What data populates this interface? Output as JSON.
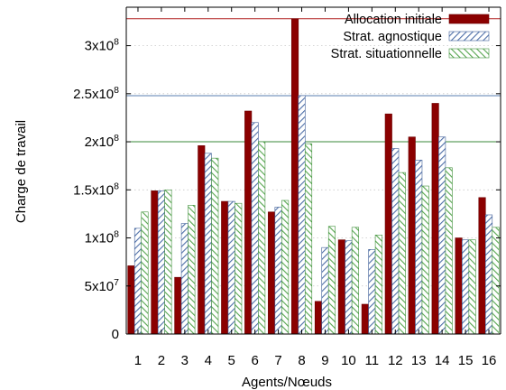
{
  "chart_data": {
    "type": "bar",
    "xlabel": "Agents/Nœuds",
    "ylabel": "Charge de travail",
    "ylim": [
      0,
      340000000
    ],
    "y_ticks": [
      {
        "value": 0,
        "mantissa": "0",
        "exp": ""
      },
      {
        "value": 50000000,
        "mantissa": "5x10",
        "exp": "7"
      },
      {
        "value": 100000000,
        "mantissa": "1x10",
        "exp": "8"
      },
      {
        "value": 150000000,
        "mantissa": "1.5x10",
        "exp": "8"
      },
      {
        "value": 200000000,
        "mantissa": "2x10",
        "exp": "8"
      },
      {
        "value": 250000000,
        "mantissa": "2.5x10",
        "exp": "8"
      },
      {
        "value": 300000000,
        "mantissa": "3x10",
        "exp": "8"
      }
    ],
    "categories": [
      "1",
      "2",
      "3",
      "4",
      "5",
      "6",
      "7",
      "8",
      "9",
      "10",
      "11",
      "12",
      "13",
      "14",
      "15",
      "16"
    ],
    "series": [
      {
        "name": "Allocation initiale",
        "color": "#8b0000",
        "pattern": "solid",
        "values": [
          71000000,
          149000000,
          59000000,
          196000000,
          138000000,
          232000000,
          127000000,
          328000000,
          34000000,
          98000000,
          31000000,
          229000000,
          205000000,
          240000000,
          100000000,
          142000000
        ]
      },
      {
        "name": "Strat. agnostique",
        "color": "#5a7fb0",
        "pattern": "hatch-blue",
        "values": [
          110000000,
          149000000,
          115000000,
          188000000,
          138000000,
          220000000,
          132000000,
          248000000,
          90000000,
          97000000,
          88000000,
          193000000,
          181000000,
          205000000,
          98000000,
          124000000
        ]
      },
      {
        "name": "Strat. situationnelle",
        "color": "#5aab55",
        "pattern": "hatch-green",
        "values": [
          127000000,
          150000000,
          134000000,
          183000000,
          136000000,
          200000000,
          139000000,
          198000000,
          112000000,
          111000000,
          103000000,
          168000000,
          154000000,
          173000000,
          98000000,
          111000000
        ]
      }
    ],
    "reference_lines": [
      {
        "value": 328000000,
        "color": "#b22222"
      },
      {
        "value": 248000000,
        "color": "#5a7fb0"
      },
      {
        "value": 200000000,
        "color": "#3a8a3a"
      }
    ],
    "legend_position": "top-right",
    "grid": "dotted-horizontal"
  }
}
